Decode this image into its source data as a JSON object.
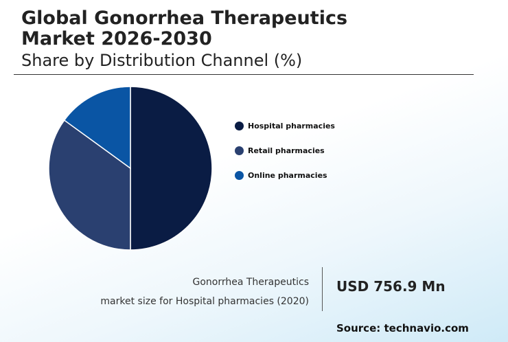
{
  "header": {
    "title_line1": "Global Gonorrhea Therapeutics",
    "title_line2": "Market 2026-2030",
    "subtitle": "Share by Distribution Channel (%)"
  },
  "chart_data": {
    "type": "pie",
    "title": "Global Gonorrhea Therapeutics Market 2026-2030",
    "subtitle": "Share by Distribution Channel (%)",
    "categories": [
      "Hospital pharmacies",
      "Retail pharmacies",
      "Online pharmacies"
    ],
    "values": [
      50,
      35,
      15
    ],
    "colors": [
      "#0a1c44",
      "#2a4070",
      "#0a55a4"
    ],
    "legend_position": "right"
  },
  "stat": {
    "label_line1": "Gonorrhea Therapeutics",
    "label_line2": "market size for Hospital pharmacies (2020)",
    "value": "USD 756.9 Mn"
  },
  "source": "Source: technavio.com"
}
